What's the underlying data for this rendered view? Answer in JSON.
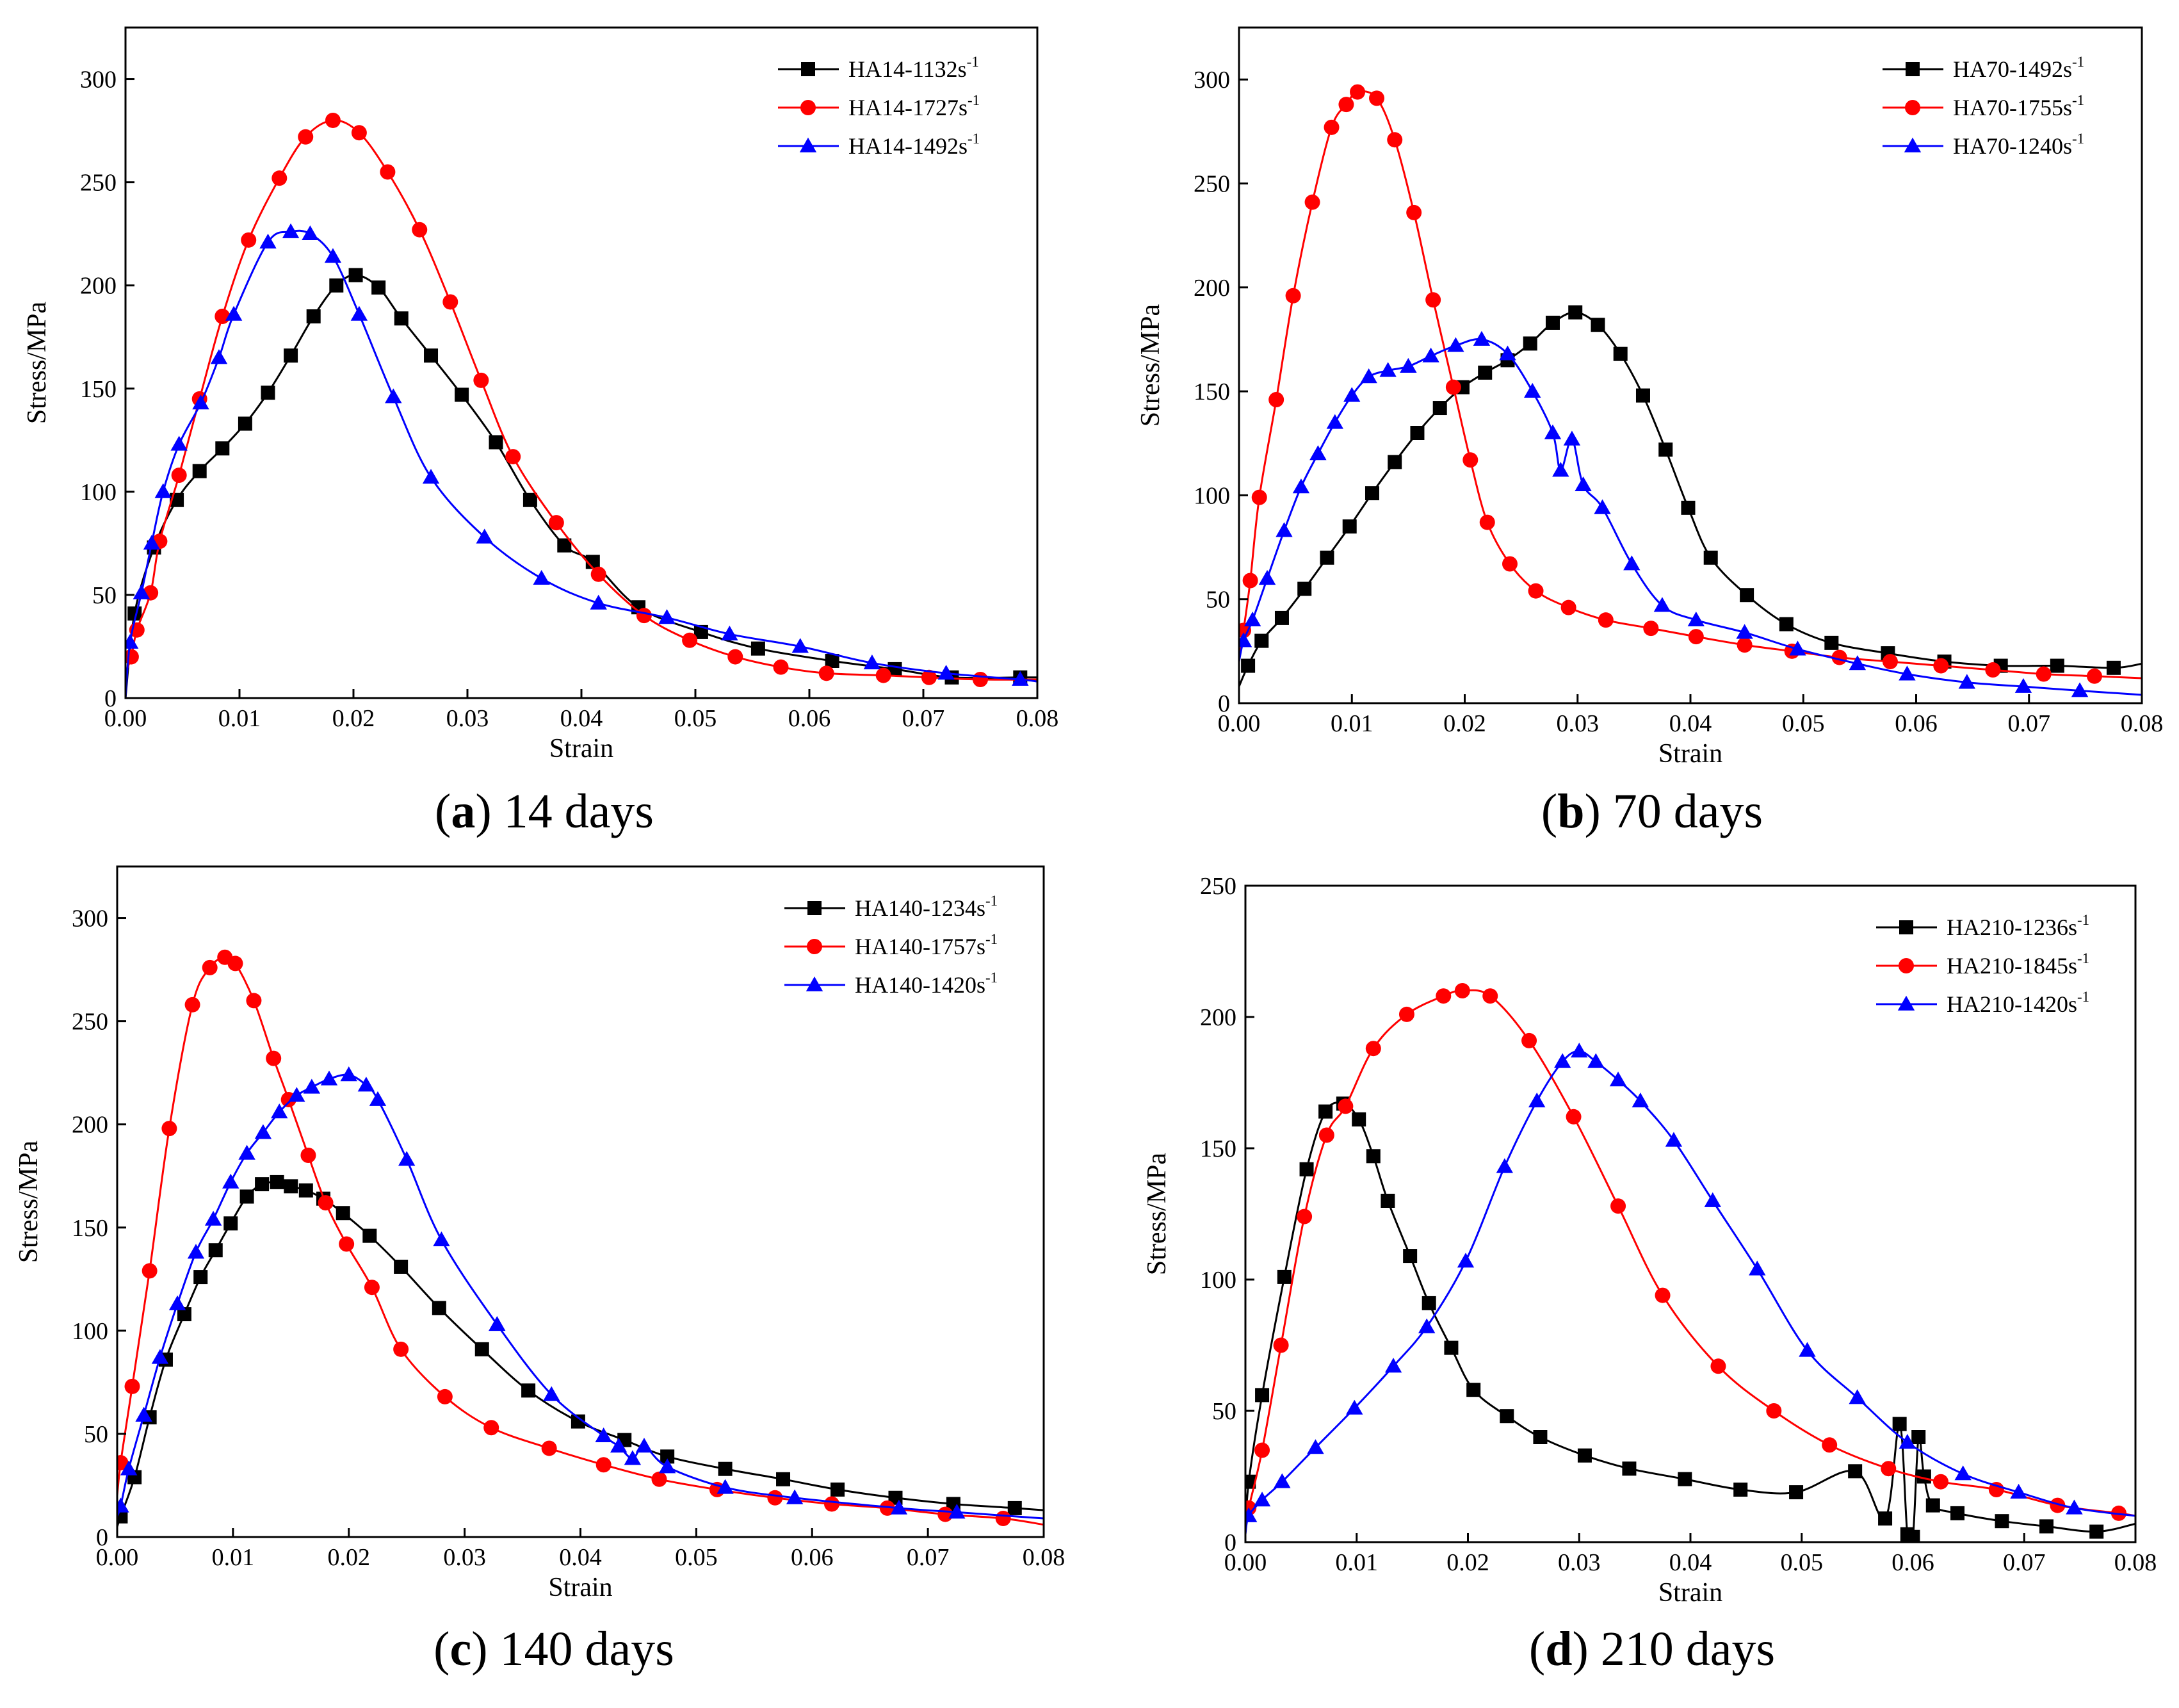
{
  "figure": {
    "panels": [
      {
        "caption_letter": "a",
        "caption_rest": " 14 days"
      },
      {
        "caption_letter": "b",
        "caption_rest": " 70 days"
      },
      {
        "caption_letter": "c",
        "caption_rest": " 140 days"
      },
      {
        "caption_letter": "d",
        "caption_rest": " 210 days"
      }
    ]
  },
  "chart_data": [
    {
      "type": "line",
      "title": "(a) 14 days",
      "xlabel": "Strain",
      "ylabel": "Stress/MPa",
      "xlim": [
        0,
        0.08
      ],
      "ylim": [
        0,
        325
      ],
      "xticks": [
        0,
        0.01,
        0.02,
        0.03,
        0.04,
        0.05,
        0.06,
        0.07,
        0.08
      ],
      "xtick_labels": [
        "0.00",
        "0.01",
        "0.02",
        "0.03",
        "0.04",
        "0.05",
        "0.06",
        "0.07",
        "0.08"
      ],
      "yticks": [
        0,
        50,
        100,
        150,
        200,
        250,
        300
      ],
      "ytick_labels": [
        "0",
        "50",
        "100",
        "150",
        "200",
        "250",
        "300"
      ],
      "legend_position": "top-right",
      "series": [
        {
          "name": "HA14-1132s-1",
          "legend_base": "HA14-1132s",
          "legend_sup": "-1",
          "color": "#000000",
          "marker": "square",
          "x": [
            0,
            0.0008,
            0.0025,
            0.0045,
            0.0065,
            0.0085,
            0.0105,
            0.0125,
            0.0145,
            0.0165,
            0.0185,
            0.0202,
            0.0222,
            0.0242,
            0.0268,
            0.0295,
            0.0325,
            0.0355,
            0.0385,
            0.041,
            0.045,
            0.0505,
            0.0555,
            0.062,
            0.0675,
            0.0725,
            0.0785,
            0.08
          ],
          "y": [
            0,
            41,
            73,
            96,
            110,
            121,
            133,
            148,
            166,
            185,
            200,
            205,
            199,
            184,
            166,
            147,
            124,
            96,
            74,
            66,
            44,
            32,
            24,
            18,
            14,
            10,
            10,
            10
          ]
        },
        {
          "name": "HA14-1727s-1",
          "legend_base": "HA14-1727s",
          "legend_sup": "-1",
          "color": "#ff0000",
          "marker": "circle",
          "x": [
            0,
            0.0005,
            0.001,
            0.0022,
            0.003,
            0.0047,
            0.0065,
            0.0085,
            0.0108,
            0.0135,
            0.0158,
            0.0182,
            0.0205,
            0.023,
            0.0258,
            0.0285,
            0.0312,
            0.034,
            0.0378,
            0.0415,
            0.0455,
            0.0495,
            0.0535,
            0.0575,
            0.0615,
            0.0665,
            0.0705,
            0.075,
            0.08
          ],
          "y": [
            12,
            20,
            33,
            51,
            76,
            108,
            145,
            185,
            222,
            252,
            272,
            280,
            274,
            255,
            227,
            192,
            154,
            117,
            85,
            60,
            40,
            28,
            20,
            15,
            12,
            11,
            10,
            9,
            9
          ]
        },
        {
          "name": "HA14-1492s-1",
          "legend_base": "HA14-1492s",
          "legend_sup": "-1",
          "color": "#0000ff",
          "marker": "triangle",
          "x": [
            0,
            0.0004,
            0.0014,
            0.0023,
            0.0033,
            0.0047,
            0.0066,
            0.0082,
            0.0095,
            0.0125,
            0.0145,
            0.0162,
            0.0182,
            0.0205,
            0.0235,
            0.0268,
            0.0315,
            0.0365,
            0.0415,
            0.0475,
            0.053,
            0.0592,
            0.0655,
            0.072,
            0.0785,
            0.08
          ],
          "y": [
            0,
            27,
            51,
            75,
            100,
            123,
            143,
            165,
            186,
            221,
            226,
            225,
            214,
            186,
            146,
            107,
            78,
            58,
            46,
            39,
            31,
            25,
            17,
            12,
            9,
            8
          ]
        }
      ]
    },
    {
      "type": "line",
      "title": "(b) 70 days",
      "xlabel": "Strain",
      "ylabel": "Stress/MPa",
      "xlim": [
        0,
        0.08
      ],
      "ylim": [
        0,
        325
      ],
      "xticks": [
        0,
        0.01,
        0.02,
        0.03,
        0.04,
        0.05,
        0.06,
        0.07,
        0.08
      ],
      "xtick_labels": [
        "0.00",
        "0.01",
        "0.02",
        "0.03",
        "0.04",
        "0.05",
        "0.06",
        "0.07",
        "0.08"
      ],
      "yticks": [
        0,
        50,
        100,
        150,
        200,
        250,
        300
      ],
      "ytick_labels": [
        "0",
        "50",
        "100",
        "150",
        "200",
        "250",
        "300"
      ],
      "legend_position": "top-right",
      "series": [
        {
          "name": "HA70-1492s-1",
          "legend_base": "HA70-1492s",
          "legend_sup": "-1",
          "color": "#000000",
          "marker": "square",
          "x": [
            0,
            0.0008,
            0.002,
            0.0038,
            0.0058,
            0.0078,
            0.0098,
            0.0118,
            0.0138,
            0.0158,
            0.0178,
            0.0198,
            0.0218,
            0.0238,
            0.0258,
            0.0278,
            0.0298,
            0.0318,
            0.0338,
            0.0358,
            0.0378,
            0.0398,
            0.0418,
            0.045,
            0.0485,
            0.0525,
            0.0575,
            0.0625,
            0.0675,
            0.0725,
            0.0775,
            0.08
          ],
          "y": [
            8,
            18,
            30,
            41,
            55,
            70,
            85,
            101,
            116,
            130,
            142,
            152,
            159,
            165,
            173,
            183,
            188,
            182,
            168,
            148,
            122,
            94,
            70,
            52,
            38,
            29,
            24,
            20,
            18,
            18,
            17,
            19
          ]
        },
        {
          "name": "HA70-1755s-1",
          "legend_base": "HA70-1755s",
          "legend_sup": "-1",
          "color": "#ff0000",
          "marker": "circle",
          "x": [
            0,
            0.0004,
            0.001,
            0.0018,
            0.0033,
            0.0048,
            0.0065,
            0.0082,
            0.0095,
            0.0105,
            0.0122,
            0.0138,
            0.0155,
            0.0172,
            0.019,
            0.0205,
            0.022,
            0.024,
            0.0263,
            0.0292,
            0.0325,
            0.0365,
            0.0405,
            0.0448,
            0.049,
            0.0532,
            0.0577,
            0.0622,
            0.0668,
            0.0713,
            0.0758,
            0.08
          ],
          "y": [
            20,
            35,
            59,
            99,
            146,
            196,
            241,
            277,
            288,
            294,
            291,
            271,
            236,
            194,
            152,
            117,
            87,
            67,
            54,
            46,
            40,
            36,
            32,
            28,
            25,
            22,
            20,
            18,
            16,
            14,
            13,
            12
          ]
        },
        {
          "name": "HA70-1240s-1",
          "legend_base": "HA70-1240s",
          "legend_sup": "-1",
          "color": "#0000ff",
          "marker": "triangle",
          "x": [
            0,
            0.0004,
            0.0012,
            0.0025,
            0.004,
            0.0055,
            0.007,
            0.0085,
            0.01,
            0.0115,
            0.0132,
            0.015,
            0.017,
            0.0192,
            0.0215,
            0.0238,
            0.026,
            0.0278,
            0.0285,
            0.0295,
            0.0305,
            0.0322,
            0.0348,
            0.0375,
            0.0405,
            0.0448,
            0.0495,
            0.0548,
            0.0592,
            0.0645,
            0.0695,
            0.0745,
            0.08
          ],
          "y": [
            20,
            30,
            40,
            60,
            83,
            104,
            120,
            135,
            148,
            157,
            160,
            162,
            167,
            172,
            175,
            168,
            150,
            130,
            112,
            127,
            105,
            94,
            67,
            47,
            40,
            34,
            26,
            19,
            14,
            10,
            8,
            6,
            4
          ]
        }
      ]
    },
    {
      "type": "line",
      "title": "(c) 140 days",
      "xlabel": "Strain",
      "ylabel": "Stress/MPa",
      "xlim": [
        0,
        0.08
      ],
      "ylim": [
        0,
        325
      ],
      "xticks": [
        0,
        0.01,
        0.02,
        0.03,
        0.04,
        0.05,
        0.06,
        0.07,
        0.08
      ],
      "xtick_labels": [
        "0.00",
        "0.01",
        "0.02",
        "0.03",
        "0.04",
        "0.05",
        "0.06",
        "0.07",
        "0.08"
      ],
      "yticks": [
        0,
        50,
        100,
        150,
        200,
        250,
        300
      ],
      "ytick_labels": [
        "0",
        "50",
        "100",
        "150",
        "200",
        "250",
        "300"
      ],
      "legend_position": "top-right",
      "series": [
        {
          "name": "HA140-1234s-1",
          "legend_base": "HA140-1234s",
          "legend_sup": "-1",
          "color": "#000000",
          "marker": "square",
          "x": [
            0,
            0.0003,
            0.0015,
            0.0028,
            0.0042,
            0.0058,
            0.0072,
            0.0085,
            0.0098,
            0.0112,
            0.0125,
            0.0138,
            0.015,
            0.0163,
            0.0178,
            0.0195,
            0.0218,
            0.0245,
            0.0278,
            0.0315,
            0.0355,
            0.0398,
            0.0438,
            0.0475,
            0.0525,
            0.0575,
            0.0622,
            0.0672,
            0.0722,
            0.0775,
            0.08
          ],
          "y": [
            5,
            10,
            29,
            58,
            86,
            108,
            126,
            139,
            152,
            165,
            171,
            172,
            170,
            168,
            164,
            157,
            146,
            131,
            111,
            91,
            71,
            56,
            47,
            39,
            33,
            28,
            23,
            19,
            16,
            14,
            13
          ]
        },
        {
          "name": "HA140-1757s-1",
          "legend_base": "HA140-1757s",
          "legend_sup": "-1",
          "color": "#ff0000",
          "marker": "circle",
          "x": [
            0,
            0.0003,
            0.0013,
            0.0028,
            0.0045,
            0.0065,
            0.008,
            0.0093,
            0.0102,
            0.0118,
            0.0135,
            0.0148,
            0.0165,
            0.018,
            0.0198,
            0.022,
            0.0245,
            0.0283,
            0.0323,
            0.0373,
            0.042,
            0.0468,
            0.0518,
            0.0568,
            0.0617,
            0.0665,
            0.0715,
            0.0765,
            0.08
          ],
          "y": [
            20,
            36,
            73,
            129,
            198,
            258,
            276,
            281,
            278,
            260,
            232,
            212,
            185,
            162,
            142,
            121,
            91,
            68,
            53,
            43,
            35,
            28,
            23,
            19,
            16,
            14,
            11,
            9,
            6
          ]
        },
        {
          "name": "HA140-1420s-1",
          "legend_base": "HA140-1420s",
          "legend_sup": "-1",
          "color": "#0000ff",
          "marker": "triangle",
          "x": [
            0,
            0.0003,
            0.001,
            0.0023,
            0.0037,
            0.0052,
            0.0068,
            0.0083,
            0.0098,
            0.0112,
            0.0126,
            0.014,
            0.0155,
            0.0168,
            0.0183,
            0.02,
            0.0215,
            0.0225,
            0.025,
            0.028,
            0.0328,
            0.0375,
            0.042,
            0.0433,
            0.0445,
            0.0455,
            0.0475,
            0.0525,
            0.0585,
            0.0675,
            0.0725,
            0.08
          ],
          "y": [
            10,
            15,
            33,
            59,
            87,
            113,
            138,
            154,
            172,
            186,
            196,
            206,
            214,
            218,
            222,
            224,
            219,
            212,
            183,
            144,
            103,
            69,
            49,
            44,
            38,
            44,
            34,
            24,
            19,
            14,
            12,
            9
          ]
        }
      ]
    },
    {
      "type": "line",
      "title": "(d) 210 days",
      "xlabel": "Strain",
      "ylabel": "Stress/MPa",
      "xlim": [
        0,
        0.08
      ],
      "ylim": [
        0,
        250
      ],
      "xticks": [
        0,
        0.01,
        0.02,
        0.03,
        0.04,
        0.05,
        0.06,
        0.07,
        0.08
      ],
      "xtick_labels": [
        "0.00",
        "0.01",
        "0.02",
        "0.03",
        "0.04",
        "0.05",
        "0.06",
        "0.07",
        "0.08"
      ],
      "yticks": [
        0,
        50,
        100,
        150,
        200,
        250
      ],
      "ytick_labels": [
        "0",
        "50",
        "100",
        "150",
        "200",
        "250"
      ],
      "legend_position": "top-right",
      "series": [
        {
          "name": "HA210-1236s-1",
          "legend_base": "HA210-1236s",
          "legend_sup": "-1",
          "color": "#000000",
          "marker": "square",
          "x": [
            0,
            0.0003,
            0.0015,
            0.0035,
            0.0055,
            0.0072,
            0.0088,
            0.0102,
            0.0115,
            0.0128,
            0.0148,
            0.0165,
            0.0185,
            0.0205,
            0.0235,
            0.0265,
            0.0305,
            0.0345,
            0.0395,
            0.0445,
            0.0495,
            0.0548,
            0.0575,
            0.0588,
            0.0595,
            0.06,
            0.0605,
            0.061,
            0.0618,
            0.064,
            0.068,
            0.072,
            0.0765,
            0.08
          ],
          "y": [
            5,
            23,
            56,
            101,
            142,
            164,
            167,
            161,
            147,
            130,
            109,
            91,
            74,
            58,
            48,
            40,
            33,
            28,
            24,
            20,
            19,
            27,
            9,
            45,
            3,
            2,
            40,
            25,
            14,
            11,
            8,
            6,
            4,
            7
          ]
        },
        {
          "name": "HA210-1845s-1",
          "legend_base": "HA210-1845s",
          "legend_sup": "-1",
          "color": "#ff0000",
          "marker": "circle",
          "x": [
            0,
            0.0003,
            0.0015,
            0.0032,
            0.0053,
            0.0073,
            0.009,
            0.0115,
            0.0145,
            0.0178,
            0.0195,
            0.022,
            0.0255,
            0.0295,
            0.0335,
            0.0375,
            0.0425,
            0.0475,
            0.0525,
            0.0578,
            0.0625,
            0.0675,
            0.073,
            0.0785,
            0.08
          ],
          "y": [
            5,
            13,
            35,
            75,
            124,
            155,
            166,
            188,
            201,
            208,
            210,
            208,
            191,
            162,
            128,
            94,
            67,
            50,
            37,
            28,
            23,
            20,
            14,
            11,
            10
          ]
        },
        {
          "name": "HA210-1420s-1",
          "legend_base": "HA210-1420s",
          "legend_sup": "-1",
          "color": "#0000ff",
          "marker": "triangle",
          "x": [
            0,
            0.0003,
            0.0015,
            0.0033,
            0.0063,
            0.0098,
            0.0133,
            0.0163,
            0.0198,
            0.0233,
            0.0262,
            0.0285,
            0.03,
            0.0315,
            0.0335,
            0.0355,
            0.0385,
            0.042,
            0.046,
            0.0505,
            0.055,
            0.0595,
            0.0645,
            0.0695,
            0.0745,
            0.08
          ],
          "y": [
            3,
            10,
            16,
            23,
            36,
            51,
            67,
            82,
            107,
            143,
            168,
            183,
            187,
            183,
            176,
            168,
            153,
            130,
            104,
            73,
            55,
            38,
            26,
            19,
            13,
            10
          ]
        }
      ]
    }
  ]
}
